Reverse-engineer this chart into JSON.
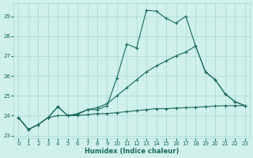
{
  "xlabel": "Humidex (Indice chaleur)",
  "bg_color": "#cff0eb",
  "grid_color": "#a8d8d0",
  "line_color": "#1a6b5a",
  "xlim": [
    -0.5,
    23.5
  ],
  "ylim": [
    22.85,
    29.65
  ],
  "yticks": [
    23,
    24,
    25,
    26,
    27,
    28,
    29
  ],
  "xticks": [
    0,
    1,
    2,
    3,
    4,
    5,
    6,
    7,
    8,
    9,
    10,
    11,
    12,
    13,
    14,
    15,
    16,
    17,
    18,
    19,
    20,
    21,
    22,
    23
  ],
  "line1_x": [
    0,
    1,
    2,
    3,
    4,
    5,
    6,
    7,
    8,
    9,
    10,
    11,
    12,
    13,
    14,
    15,
    16,
    17,
    18,
    19,
    20,
    21,
    22,
    23
  ],
  "line1_y": [
    23.9,
    23.3,
    23.55,
    23.9,
    24.45,
    24.0,
    24.05,
    24.3,
    24.3,
    24.5,
    25.9,
    27.6,
    27.4,
    29.3,
    29.25,
    28.9,
    28.65,
    29.0,
    27.5,
    26.2,
    25.8,
    25.1,
    24.7,
    24.5
  ],
  "line2_x": [
    0,
    1,
    2,
    3,
    4,
    5,
    6,
    7,
    8,
    9,
    10,
    11,
    12,
    13,
    14,
    15,
    16,
    17,
    18,
    19,
    20,
    21,
    22,
    23
  ],
  "line2_y": [
    23.9,
    23.3,
    23.55,
    23.9,
    24.45,
    24.0,
    24.1,
    24.3,
    24.4,
    24.6,
    25.0,
    25.4,
    25.8,
    26.2,
    26.5,
    26.75,
    27.0,
    27.2,
    27.5,
    26.2,
    25.8,
    25.1,
    24.7,
    24.5
  ],
  "line3_x": [
    0,
    1,
    2,
    3,
    4,
    5,
    6,
    7,
    8,
    9,
    10,
    11,
    12,
    13,
    14,
    15,
    16,
    17,
    18,
    19,
    20,
    21,
    22,
    23
  ],
  "line3_y": [
    23.9,
    23.3,
    23.55,
    23.9,
    24.0,
    24.0,
    24.0,
    24.05,
    24.1,
    24.1,
    24.15,
    24.2,
    24.25,
    24.3,
    24.35,
    24.35,
    24.38,
    24.4,
    24.42,
    24.45,
    24.48,
    24.5,
    24.5,
    24.5
  ]
}
